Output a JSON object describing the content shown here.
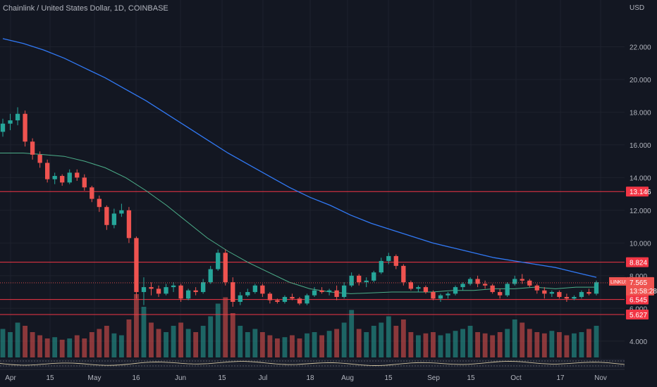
{
  "header": {
    "title": "Chainlink / United States Dollar, 1D, COINBASE",
    "unit": "USD"
  },
  "chart_data": {
    "type": "candlestick",
    "symbol": "LINKUSD",
    "ylim": [
      3.0,
      24.0
    ],
    "y_ticks": [
      "22.000",
      "20.000",
      "18.000",
      "16.000",
      "14.000",
      "12.000",
      "10.000",
      "8.000",
      "6.000",
      "4.000"
    ],
    "x_ticks": [
      "Apr",
      "15",
      "May",
      "16",
      "Jun",
      "15",
      "Jul",
      "18",
      "Aug",
      "15",
      "Sep",
      "15",
      "Oct",
      "17",
      "Nov"
    ],
    "horizontal_levels": [
      {
        "label": "13.146",
        "value": 13.146
      },
      {
        "label": "8.824",
        "value": 8.824
      },
      {
        "label": "6.545",
        "value": 6.545
      },
      {
        "label": "5.627",
        "value": 5.627
      }
    ],
    "current_price": {
      "symbol": "LINKUSD",
      "price": "7.565",
      "countdown": "13:58:28",
      "value": 7.565
    },
    "ma_fast": [
      15.5,
      15.5,
      15.4,
      15.3,
      15.0,
      14.6,
      14.0,
      13.2,
      12.3,
      11.3,
      10.3,
      9.5,
      8.8,
      8.2,
      7.6,
      7.2,
      7.0,
      6.9,
      6.95,
      7.0,
      7.0,
      7.0,
      7.1,
      7.1,
      7.2,
      7.2,
      7.3,
      7.2,
      7.3,
      7.3
    ],
    "ma_slow": [
      22.5,
      22.2,
      21.8,
      21.3,
      20.7,
      20.1,
      19.4,
      18.7,
      17.9,
      17.1,
      16.3,
      15.5,
      14.8,
      14.1,
      13.4,
      12.8,
      12.3,
      11.7,
      11.2,
      10.8,
      10.4,
      10.0,
      9.7,
      9.4,
      9.1,
      8.9,
      8.7,
      8.5,
      8.2,
      7.9
    ],
    "ohlc": [
      [
        16.8,
        17.6,
        16.5,
        17.3
      ],
      [
        17.3,
        17.9,
        16.9,
        17.5
      ],
      [
        17.5,
        18.3,
        17.2,
        17.9
      ],
      [
        17.9,
        18.1,
        15.9,
        16.2
      ],
      [
        16.2,
        16.4,
        15.1,
        15.4
      ],
      [
        15.4,
        15.6,
        14.6,
        14.9
      ],
      [
        14.9,
        15.1,
        13.7,
        13.9
      ],
      [
        13.9,
        14.3,
        13.6,
        14.1
      ],
      [
        14.1,
        14.2,
        13.5,
        13.7
      ],
      [
        13.7,
        14.5,
        13.6,
        14.3
      ],
      [
        14.3,
        14.5,
        13.8,
        14.0
      ],
      [
        14.0,
        14.2,
        13.2,
        13.4
      ],
      [
        13.4,
        13.5,
        12.5,
        12.7
      ],
      [
        12.7,
        12.9,
        11.9,
        12.2
      ],
      [
        12.2,
        12.3,
        10.8,
        11.1
      ],
      [
        11.1,
        12.1,
        10.9,
        11.8
      ],
      [
        11.8,
        12.4,
        11.6,
        12.0
      ],
      [
        12.0,
        12.2,
        10.0,
        10.3
      ],
      [
        10.3,
        10.4,
        6.6,
        7.0
      ],
      [
        7.0,
        7.9,
        6.2,
        7.3
      ],
      [
        7.3,
        7.6,
        6.8,
        7.2
      ],
      [
        7.2,
        7.4,
        6.7,
        6.9
      ],
      [
        6.9,
        7.5,
        6.8,
        7.3
      ],
      [
        7.3,
        7.6,
        7.0,
        7.4
      ],
      [
        7.4,
        7.5,
        6.4,
        6.6
      ],
      [
        6.6,
        7.2,
        6.5,
        7.1
      ],
      [
        7.1,
        7.3,
        6.8,
        7.0
      ],
      [
        7.0,
        7.8,
        6.9,
        7.6
      ],
      [
        7.6,
        8.6,
        7.5,
        8.4
      ],
      [
        8.4,
        9.6,
        8.3,
        9.4
      ],
      [
        9.4,
        9.6,
        7.4,
        7.6
      ],
      [
        7.6,
        7.9,
        6.1,
        6.4
      ],
      [
        6.4,
        7.0,
        6.2,
        6.8
      ],
      [
        6.8,
        7.2,
        6.7,
        7.0
      ],
      [
        7.0,
        7.5,
        6.9,
        7.4
      ],
      [
        7.4,
        7.5,
        6.7,
        6.9
      ],
      [
        6.9,
        7.0,
        6.3,
        6.5
      ],
      [
        6.5,
        6.6,
        6.3,
        6.4
      ],
      [
        6.4,
        6.8,
        6.3,
        6.7
      ],
      [
        6.7,
        6.9,
        6.5,
        6.6
      ],
      [
        6.6,
        6.7,
        6.2,
        6.3
      ],
      [
        6.3,
        6.9,
        6.2,
        6.8
      ],
      [
        6.8,
        7.3,
        6.7,
        7.1
      ],
      [
        7.1,
        7.3,
        6.9,
        7.0
      ],
      [
        7.0,
        7.2,
        6.8,
        7.1
      ],
      [
        7.1,
        7.4,
        6.5,
        6.7
      ],
      [
        6.7,
        7.6,
        6.6,
        7.4
      ],
      [
        7.4,
        8.2,
        7.3,
        8.0
      ],
      [
        8.0,
        8.1,
        7.4,
        7.6
      ],
      [
        7.6,
        7.9,
        7.3,
        7.7
      ],
      [
        7.7,
        8.3,
        7.6,
        8.2
      ],
      [
        8.2,
        9.1,
        8.1,
        8.9
      ],
      [
        8.9,
        9.4,
        8.7,
        9.2
      ],
      [
        9.2,
        9.3,
        8.4,
        8.6
      ],
      [
        8.6,
        8.7,
        7.4,
        7.6
      ],
      [
        7.6,
        7.7,
        7.1,
        7.2
      ],
      [
        7.2,
        7.4,
        7.0,
        7.3
      ],
      [
        7.3,
        7.4,
        6.9,
        7.0
      ],
      [
        7.0,
        7.1,
        6.5,
        6.6
      ],
      [
        6.6,
        6.9,
        6.4,
        6.8
      ],
      [
        6.8,
        7.0,
        6.6,
        6.9
      ],
      [
        6.9,
        7.4,
        6.8,
        7.3
      ],
      [
        7.3,
        7.6,
        7.1,
        7.5
      ],
      [
        7.5,
        7.9,
        7.4,
        7.8
      ],
      [
        7.8,
        8.0,
        7.3,
        7.5
      ],
      [
        7.5,
        7.7,
        7.2,
        7.4
      ],
      [
        7.4,
        7.5,
        6.9,
        7.0
      ],
      [
        7.0,
        7.2,
        6.6,
        6.8
      ],
      [
        6.8,
        7.6,
        6.7,
        7.5
      ],
      [
        7.5,
        8.0,
        7.4,
        7.8
      ],
      [
        7.8,
        8.1,
        7.5,
        7.7
      ],
      [
        7.7,
        7.8,
        7.3,
        7.4
      ],
      [
        7.4,
        7.5,
        6.9,
        7.1
      ],
      [
        7.1,
        7.3,
        6.6,
        6.9
      ],
      [
        6.9,
        7.1,
        6.7,
        7.0
      ],
      [
        7.0,
        7.1,
        6.6,
        6.7
      ],
      [
        6.7,
        6.9,
        6.4,
        6.6
      ],
      [
        6.6,
        6.8,
        6.5,
        6.7
      ],
      [
        6.7,
        7.1,
        6.6,
        7.0
      ],
      [
        7.0,
        7.2,
        6.8,
        6.9
      ],
      [
        6.9,
        7.7,
        6.8,
        7.6
      ]
    ],
    "volume": [
      0.45,
      0.4,
      0.55,
      0.5,
      0.4,
      0.35,
      0.3,
      0.32,
      0.28,
      0.3,
      0.35,
      0.3,
      0.4,
      0.45,
      0.5,
      0.38,
      0.35,
      0.6,
      1.0,
      0.8,
      0.55,
      0.45,
      0.4,
      0.5,
      0.55,
      0.45,
      0.4,
      0.5,
      0.65,
      0.85,
      0.95,
      0.7,
      0.5,
      0.4,
      0.45,
      0.4,
      0.35,
      0.3,
      0.32,
      0.35,
      0.3,
      0.38,
      0.4,
      0.35,
      0.42,
      0.45,
      0.55,
      0.75,
      0.45,
      0.4,
      0.5,
      0.55,
      0.65,
      0.5,
      0.6,
      0.4,
      0.35,
      0.38,
      0.4,
      0.35,
      0.38,
      0.42,
      0.45,
      0.5,
      0.4,
      0.38,
      0.35,
      0.4,
      0.45,
      0.6,
      0.55,
      0.45,
      0.4,
      0.38,
      0.42,
      0.4,
      0.35,
      0.38,
      0.4,
      0.45,
      0.5
    ]
  }
}
